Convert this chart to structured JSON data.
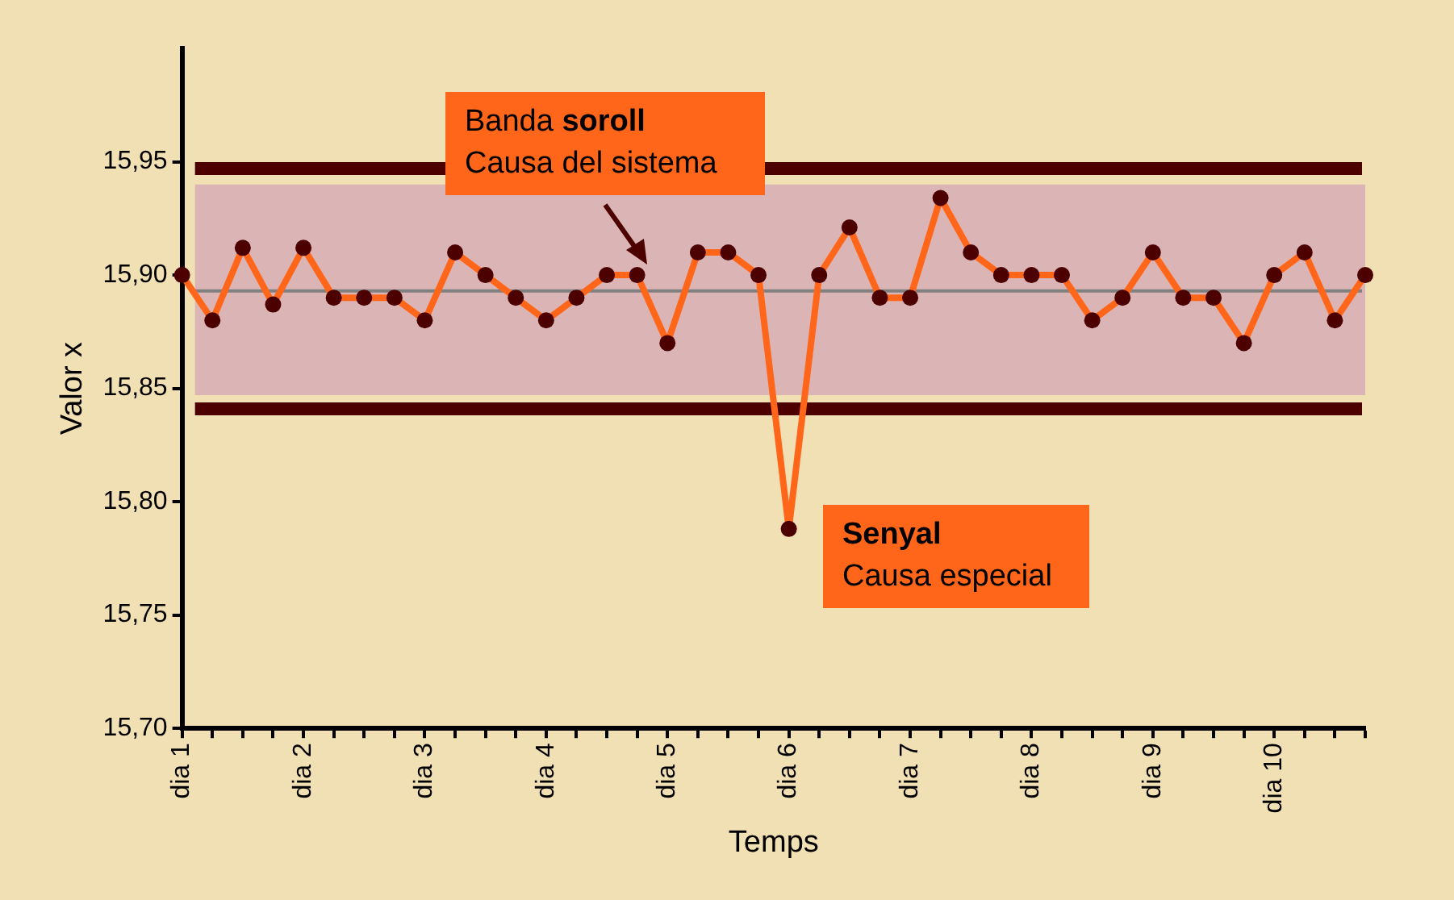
{
  "chart_data": {
    "type": "line",
    "xlabel": "Temps",
    "ylabel": "Valor x",
    "categories": [
      "dia 1",
      null,
      null,
      null,
      "dia 2",
      null,
      null,
      null,
      "dia 3",
      null,
      null,
      null,
      "dia 4",
      null,
      null,
      null,
      "dia 5",
      null,
      null,
      null,
      "dia 6",
      null,
      null,
      null,
      "dia 7",
      null,
      null,
      null,
      "dia 8",
      null,
      null,
      null,
      "dia 9",
      null,
      null,
      null,
      "dia 10",
      null,
      null,
      null
    ],
    "series": [
      {
        "color": "#ff6619",
        "values": [
          15.9,
          15.88,
          15.912,
          15.887,
          15.912,
          15.89,
          15.89,
          15.89,
          15.88,
          15.91,
          15.9,
          15.89,
          15.88,
          15.89,
          15.9,
          15.9,
          15.87,
          15.91,
          15.91,
          15.9,
          15.788,
          15.9,
          15.921,
          15.89,
          15.89,
          15.934,
          15.91,
          15.9,
          15.9,
          15.9,
          15.88,
          15.89,
          15.91,
          15.89,
          15.89,
          15.87,
          15.9,
          15.91,
          15.88,
          15.9
        ]
      }
    ],
    "marker": "circle",
    "grid": false,
    "legend": false,
    "ylim": [
      15.7,
      16.0
    ],
    "yticks": [
      {
        "value": 15.7,
        "label": "15,70"
      },
      {
        "value": 15.75,
        "label": "15,75"
      },
      {
        "value": 15.8,
        "label": "15,80"
      },
      {
        "value": 15.85,
        "label": "15,85"
      },
      {
        "value": 15.9,
        "label": "15,90"
      },
      {
        "value": 15.95,
        "label": "15,95"
      }
    ],
    "bands": [
      {
        "axis": "y",
        "from": 15.847,
        "to": 15.94,
        "color": "#dbb5b5"
      }
    ],
    "ref_lines": [
      {
        "axis": "y",
        "value": 15.947,
        "color": "#4d0000"
      },
      {
        "axis": "y",
        "value": 15.841,
        "color": "#4d0000"
      },
      {
        "axis": "y",
        "value": 15.893,
        "color": "#808080"
      }
    ],
    "annotations": [
      "Banda soroll\nCausa del sistema",
      "Senyal\nCausa especial"
    ]
  }
}
